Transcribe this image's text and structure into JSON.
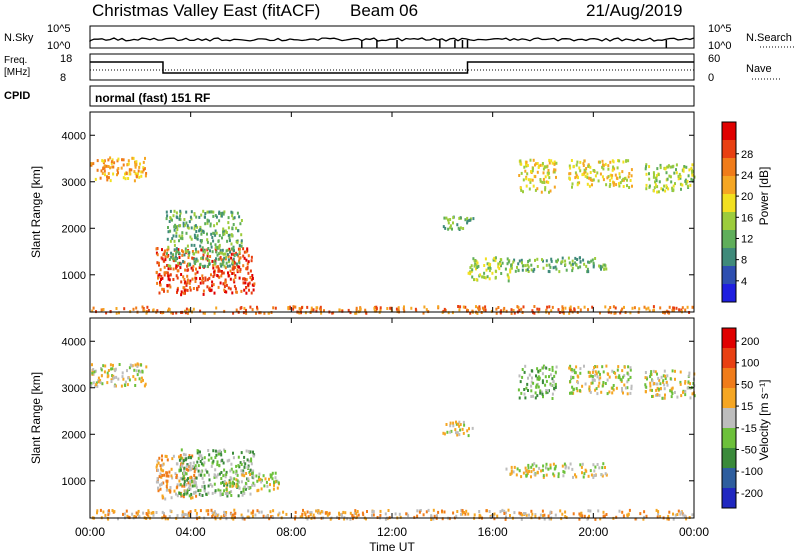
{
  "header": {
    "station": "Christmas Valley East (fitACF)",
    "beam": "Beam 06",
    "date": "21/Aug/2019"
  },
  "panels": {
    "nsky_label": "N.Sky",
    "nsearch_label": "N.Search",
    "nsky_ticks": [
      "10^5",
      "10^0"
    ],
    "nsearch_ticks": [
      "10^5",
      "10^0"
    ],
    "freq_label_1": "Freq.",
    "freq_label_2": "[MHz]",
    "freq_ticks": [
      "18",
      "8"
    ],
    "nave_label": "Nave",
    "nave_ticks": [
      "60",
      "0"
    ],
    "cpid_label": "CPID",
    "cpid_value": "normal (fast) 151 RF"
  },
  "chart_data": [
    {
      "type": "heatmap",
      "title": "",
      "xlabel": "Time UT",
      "ylabel": "Slant Range [km]",
      "x_ticks": [
        "00:00",
        "04:00",
        "08:00",
        "12:00",
        "16:00",
        "20:00",
        "00:00"
      ],
      "xlim_hours": [
        0,
        24
      ],
      "y_ticks": [
        1000,
        2000,
        3000,
        4000
      ],
      "ylim": [
        200,
        4500
      ],
      "colorbar": {
        "label": "Power [dB]",
        "ticks": [
          "4",
          "8",
          "12",
          "16",
          "20",
          "24",
          "28"
        ],
        "colors": [
          "#1f1fe0",
          "#2e4fb0",
          "#3f8a7a",
          "#5fae5a",
          "#9ccc3c",
          "#f2e020",
          "#f5a623",
          "#f07c1a",
          "#e84012",
          "#e00000"
        ]
      },
      "echo_regions": [
        {
          "t0": 0.0,
          "t1": 2.2,
          "r0": 3050,
          "r1": 3550,
          "level": 6
        },
        {
          "t0": 2.6,
          "t1": 6.5,
          "r0": 600,
          "r1": 1600,
          "level": 8
        },
        {
          "t0": 3.0,
          "t1": 6.0,
          "r0": 1200,
          "r1": 2400,
          "level": 3
        },
        {
          "t0": 0.0,
          "t1": 24.0,
          "r0": 200,
          "r1": 350,
          "level": 7
        },
        {
          "t0": 14.0,
          "t1": 15.2,
          "r0": 2000,
          "r1": 2300,
          "level": 3
        },
        {
          "t0": 15.0,
          "t1": 16.8,
          "r0": 900,
          "r1": 1400,
          "level": 4
        },
        {
          "t0": 16.5,
          "t1": 20.5,
          "r0": 1100,
          "r1": 1400,
          "level": 3
        },
        {
          "t0": 17.0,
          "t1": 18.5,
          "r0": 2800,
          "r1": 3500,
          "level": 5
        },
        {
          "t0": 19.0,
          "t1": 21.5,
          "r0": 2900,
          "r1": 3500,
          "level": 5
        },
        {
          "t0": 22.0,
          "t1": 24.0,
          "r0": 2800,
          "r1": 3400,
          "level": 4
        }
      ]
    },
    {
      "type": "heatmap",
      "title": "",
      "xlabel": "Time UT",
      "ylabel": "Slant Range [km]",
      "x_ticks": [
        "00:00",
        "04:00",
        "08:00",
        "12:00",
        "16:00",
        "20:00",
        "00:00"
      ],
      "xlim_hours": [
        0,
        24
      ],
      "y_ticks": [
        1000,
        2000,
        3000,
        4000
      ],
      "ylim": [
        200,
        4500
      ],
      "colorbar": {
        "label": "Velocity [m s⁻¹]",
        "ticks": [
          "200",
          "100",
          "50",
          "15",
          "-15",
          "-50",
          "-100",
          "-200"
        ],
        "colors": [
          "#2028c0",
          "#2e5e9e",
          "#3a8a3a",
          "#6cc03a",
          "#bdbdbd",
          "#f5a623",
          "#f07c1a",
          "#e84012",
          "#e00000"
        ]
      },
      "echo_regions": [
        {
          "t0": 0.0,
          "t1": 2.2,
          "r0": 3050,
          "r1": 3550,
          "level": 4
        },
        {
          "t0": 2.6,
          "t1": 4.2,
          "r0": 600,
          "r1": 1600,
          "level": 5
        },
        {
          "t0": 3.5,
          "t1": 6.5,
          "r0": 700,
          "r1": 1700,
          "level": 3
        },
        {
          "t0": 5.0,
          "t1": 7.5,
          "r0": 800,
          "r1": 1200,
          "level": 4
        },
        {
          "t0": 0.0,
          "t1": 24.0,
          "r0": 200,
          "r1": 400,
          "level": 5
        },
        {
          "t0": 14.0,
          "t1": 15.2,
          "r0": 2000,
          "r1": 2300,
          "level": 4
        },
        {
          "t0": 16.5,
          "t1": 20.5,
          "r0": 1100,
          "r1": 1400,
          "level": 4
        },
        {
          "t0": 17.0,
          "t1": 18.5,
          "r0": 2800,
          "r1": 3500,
          "level": 3
        },
        {
          "t0": 19.0,
          "t1": 21.5,
          "r0": 2900,
          "r1": 3500,
          "level": 4
        },
        {
          "t0": 22.0,
          "t1": 24.0,
          "r0": 2800,
          "r1": 3400,
          "level": 4
        }
      ]
    }
  ]
}
